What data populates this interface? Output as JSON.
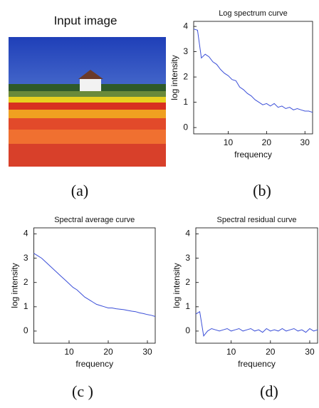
{
  "figure": {
    "image_title": "Input image",
    "captions": [
      "(a)",
      "(b)",
      "(c )",
      "(d)"
    ]
  },
  "chart_data": [
    {
      "type": "line",
      "title": "Log spectrum curve",
      "xlabel": "frequency",
      "ylabel": "log intensity",
      "color": "#3b4fd8",
      "x": [
        1,
        2,
        3,
        4,
        5,
        6,
        7,
        8,
        9,
        10,
        11,
        12,
        13,
        14,
        15,
        16,
        17,
        18,
        19,
        20,
        21,
        22,
        23,
        24,
        25,
        26,
        27,
        28,
        29,
        30,
        31,
        32
      ],
      "values": [
        3.9,
        3.85,
        2.75,
        2.9,
        2.8,
        2.6,
        2.5,
        2.3,
        2.15,
        2.05,
        1.9,
        1.85,
        1.6,
        1.5,
        1.35,
        1.25,
        1.1,
        1.0,
        0.9,
        0.95,
        0.85,
        0.95,
        0.8,
        0.85,
        0.75,
        0.8,
        0.7,
        0.75,
        0.7,
        0.65,
        0.65,
        0.6
      ],
      "xlim": [
        1,
        32
      ],
      "ylim": [
        -0.25,
        4.2
      ],
      "xticks": [
        10,
        20,
        30
      ],
      "yticks": [
        0,
        1,
        2,
        3,
        4
      ]
    },
    {
      "type": "line",
      "title": "Spectral average curve",
      "xlabel": "frequency",
      "ylabel": "log intensity",
      "color": "#3b4fd8",
      "x": [
        1,
        2,
        3,
        4,
        5,
        6,
        7,
        8,
        9,
        10,
        11,
        12,
        13,
        14,
        15,
        16,
        17,
        18,
        19,
        20,
        21,
        22,
        23,
        24,
        25,
        26,
        27,
        28,
        29,
        30,
        31,
        32
      ],
      "values": [
        3.2,
        3.1,
        3.0,
        2.85,
        2.7,
        2.55,
        2.4,
        2.25,
        2.1,
        1.95,
        1.8,
        1.7,
        1.55,
        1.4,
        1.3,
        1.2,
        1.1,
        1.05,
        1.0,
        0.95,
        0.95,
        0.92,
        0.9,
        0.88,
        0.85,
        0.82,
        0.8,
        0.75,
        0.72,
        0.68,
        0.65,
        0.6
      ],
      "xlim": [
        1,
        32
      ],
      "ylim": [
        -0.5,
        4.25
      ],
      "xticks": [
        10,
        20,
        30
      ],
      "yticks": [
        0,
        1,
        2,
        3,
        4
      ]
    },
    {
      "type": "line",
      "title": "Spectral residual curve",
      "xlabel": "frequency",
      "ylabel": "log intensity",
      "color": "#3b4fd8",
      "x": [
        1,
        2,
        3,
        4,
        5,
        6,
        7,
        8,
        9,
        10,
        11,
        12,
        13,
        14,
        15,
        16,
        17,
        18,
        19,
        20,
        21,
        22,
        23,
        24,
        25,
        26,
        27,
        28,
        29,
        30,
        31,
        32
      ],
      "values": [
        0.7,
        0.8,
        -0.2,
        0,
        0.1,
        0.05,
        0,
        0.05,
        0.1,
        0,
        0.05,
        0.1,
        0,
        0.05,
        0.1,
        0,
        0.05,
        -0.05,
        0.1,
        0,
        0.05,
        0,
        0.1,
        0,
        0.05,
        0.1,
        0,
        0.05,
        -0.05,
        0.1,
        0,
        0.05
      ],
      "xlim": [
        1,
        32
      ],
      "ylim": [
        -0.5,
        4.25
      ],
      "xticks": [
        10,
        20,
        30
      ],
      "yticks": [
        0,
        1,
        2,
        3,
        4
      ]
    }
  ]
}
